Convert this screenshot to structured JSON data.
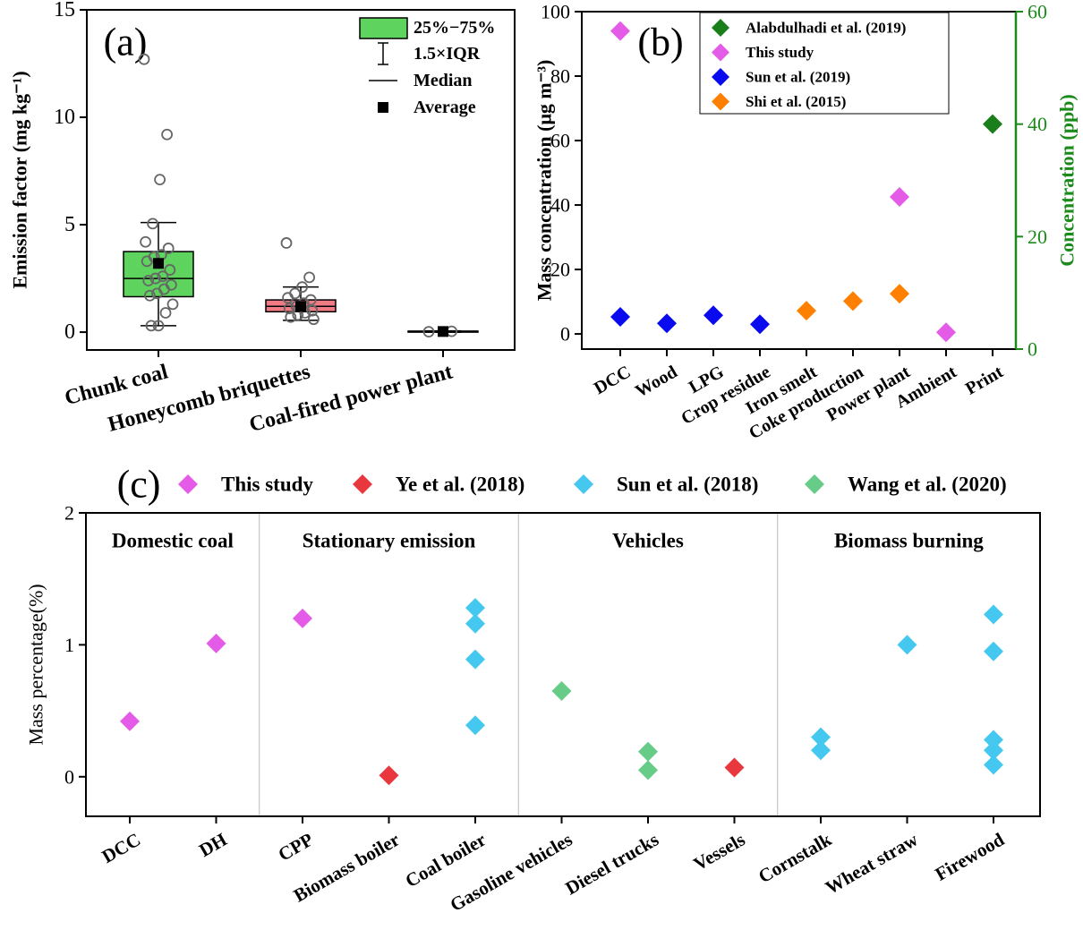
{
  "chart_data": [
    {
      "type": "box",
      "panel_label": "(a)",
      "y_label": "Emission factor (mg kg⁻¹)",
      "categories": [
        "Chunk coal",
        "Honeycomb briquettes",
        "Coal-fired power plant"
      ],
      "colors": [
        "#5ed45e",
        "#f07b84",
        "#888888"
      ],
      "ylim": [
        -0.83,
        15
      ],
      "yticks": [
        0,
        5,
        10,
        15
      ],
      "boxes": [
        {
          "whisker_low": 0.3,
          "q1": 1.65,
          "median": 2.5,
          "q3": 3.75,
          "whisker_high": 5.1,
          "mean": 3.2,
          "points": [
            12.7,
            9.2,
            7.1,
            5.05,
            4.2,
            3.9,
            3.6,
            3.5,
            3.3,
            2.9,
            2.6,
            2.5,
            2.4,
            2.2,
            2.0,
            1.8,
            1.7,
            1.3,
            0.9,
            0.3,
            0.3
          ]
        },
        {
          "whisker_low": 0.55,
          "q1": 0.95,
          "median": 1.2,
          "q3": 1.5,
          "whisker_high": 2.1,
          "mean": 1.2,
          "points": [
            4.15,
            2.55,
            2.1,
            1.8,
            1.6,
            1.5,
            1.35,
            1.2,
            1.1,
            1.0,
            0.9,
            0.8,
            0.7,
            0.6
          ]
        },
        {
          "whisker_low": 0.0,
          "q1": 0.0,
          "median": 0.02,
          "q3": 0.05,
          "whisker_high": 0.06,
          "mean": 0.03,
          "points": [
            0.02,
            0.04
          ]
        }
      ],
      "legend_labels": [
        "25%−75%",
        "1.5×IQR",
        "Median",
        "Average"
      ]
    },
    {
      "type": "dot",
      "panel_label": "(b)",
      "y_label": "Mass concentration (μg m⁻³)",
      "y2_label": "Concentration (ppb)",
      "y2_color": "#1a8a1a",
      "categories": [
        "DCC",
        "Wood",
        "LPG",
        "Crop residue",
        "Iron smelt",
        "Coke production",
        "Power plant",
        "Ambient",
        "Print"
      ],
      "ylim": [
        -4.7,
        100
      ],
      "yticks": [
        0,
        20,
        40,
        60,
        80,
        100
      ],
      "y2lim": [
        0,
        60
      ],
      "y2ticks": [
        0,
        20,
        40,
        60
      ],
      "legend": "inside",
      "series": [
        {
          "name": "Alabdulhadi et al. (2019)",
          "color": "#1a7f1a",
          "axis": "y2",
          "values": [
            null,
            null,
            null,
            null,
            null,
            null,
            null,
            null,
            40
          ]
        },
        {
          "name": "This study",
          "color": "#e45be8",
          "values": [
            94,
            null,
            null,
            null,
            null,
            null,
            42.5,
            0.5,
            null
          ]
        },
        {
          "name": "Sun et al. (2019)",
          "color": "#0a0aee",
          "values": [
            5.3,
            3.3,
            5.8,
            3.0,
            null,
            null,
            null,
            null,
            null
          ]
        },
        {
          "name": "Shi et al. (2015)",
          "color": "#ff8000",
          "values": [
            null,
            null,
            null,
            null,
            7.2,
            10.2,
            12.5,
            null,
            null
          ]
        }
      ]
    },
    {
      "type": "dot",
      "panel_label": "(c)",
      "y_label": "Mass percentage(%)",
      "categories": [
        "DCC",
        "DH",
        "CPP",
        "Biomass boiler",
        "Coal boiler",
        "Gasoline vehicles",
        "Diesel trucks",
        "Vessels",
        "Cornstalk",
        "Wheat straw",
        "Firewood"
      ],
      "ylim": [
        -0.3,
        2
      ],
      "yticks": [
        0,
        1,
        2
      ],
      "legend": "above",
      "groups": [
        {
          "label": "Domestic coal",
          "members": [
            "DCC",
            "DH"
          ]
        },
        {
          "label": "Stationary emission",
          "members": [
            "CPP",
            "Biomass boiler",
            "Coal boiler"
          ]
        },
        {
          "label": "Vehicles",
          "members": [
            "Gasoline vehicles",
            "Diesel trucks",
            "Vessels"
          ]
        },
        {
          "label": "Biomass burning",
          "members": [
            "Cornstalk",
            "Wheat straw",
            "Firewood"
          ]
        }
      ],
      "series": [
        {
          "name": "This study",
          "color": "#e45be8",
          "values": [
            0.42,
            1.01,
            1.2,
            null,
            null,
            null,
            null,
            null,
            null,
            null,
            null
          ]
        },
        {
          "name": "Ye et al. (2018)",
          "color": "#e8383d",
          "values": [
            null,
            null,
            null,
            0.01,
            null,
            null,
            null,
            0.07,
            null,
            null,
            null
          ]
        },
        {
          "name": "Sun et al. (2018)",
          "color": "#45c8f0",
          "values": [
            null,
            null,
            null,
            null,
            [
              1.28,
              1.16,
              0.89,
              0.39
            ],
            null,
            null,
            null,
            [
              0.3,
              0.2
            ],
            1.0,
            [
              1.23,
              0.95,
              0.28,
              0.2,
              0.09
            ]
          ]
        },
        {
          "name": "Wang et al. (2020)",
          "color": "#66cc88",
          "values": [
            null,
            null,
            null,
            null,
            null,
            0.65,
            [
              0.19,
              0.05
            ],
            null,
            null,
            null,
            null
          ]
        }
      ]
    }
  ]
}
